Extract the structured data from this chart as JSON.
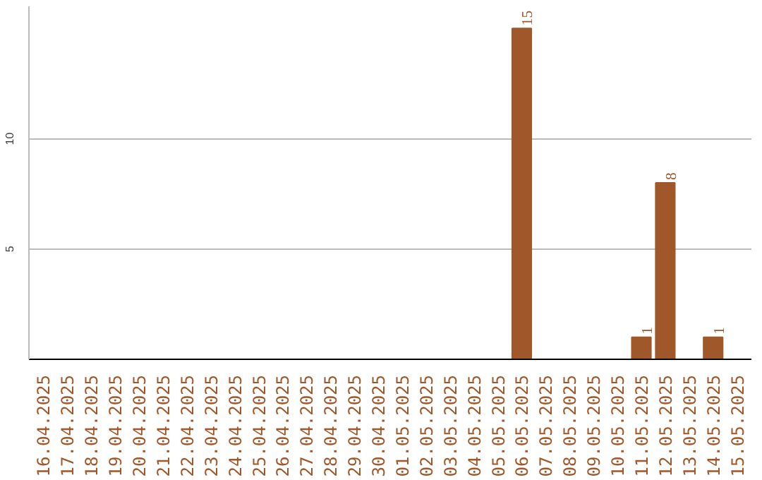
{
  "chart_data": {
    "type": "bar",
    "categories": [
      "16.04.2025",
      "17.04.2025",
      "18.04.2025",
      "19.04.2025",
      "20.04.2025",
      "21.04.2025",
      "22.04.2025",
      "23.04.2025",
      "24.04.2025",
      "25.04.2025",
      "26.04.2025",
      "27.04.2025",
      "28.04.2025",
      "29.04.2025",
      "30.04.2025",
      "01.05.2025",
      "02.05.2025",
      "03.05.2025",
      "04.05.2025",
      "05.05.2025",
      "06.05.2025",
      "07.05.2025",
      "08.05.2025",
      "09.05.2025",
      "10.05.2025",
      "11.05.2025",
      "12.05.2025",
      "13.05.2025",
      "14.05.2025",
      "15.05.2025"
    ],
    "values": [
      0,
      0,
      0,
      0,
      0,
      0,
      0,
      0,
      0,
      0,
      0,
      0,
      0,
      0,
      0,
      0,
      0,
      0,
      0,
      0,
      15,
      0,
      0,
      0,
      0,
      1,
      8,
      0,
      1,
      0
    ],
    "value_labels": [
      null,
      null,
      null,
      null,
      null,
      null,
      null,
      null,
      null,
      null,
      null,
      null,
      null,
      null,
      null,
      null,
      null,
      null,
      null,
      null,
      "15",
      null,
      null,
      null,
      null,
      "1",
      "8",
      null,
      "1",
      null
    ],
    "color": "#a0582a",
    "ylim": [
      0,
      16
    ],
    "yticks": [
      5,
      10
    ],
    "grid": "y"
  }
}
